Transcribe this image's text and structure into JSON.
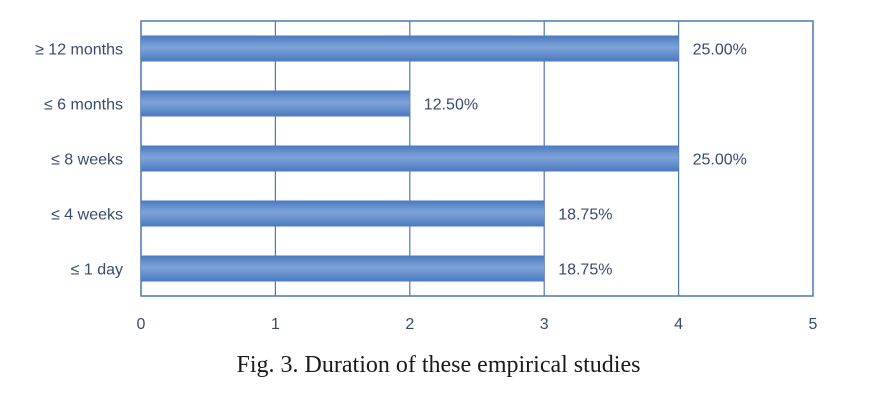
{
  "caption": "Fig. 3. Duration of these empirical studies",
  "colors": {
    "bar": "#4a79bf",
    "bar_light": "#7fa3d8",
    "grid": "#4f77b4",
    "frame": "#4f77b4"
  },
  "chart_data": {
    "type": "bar",
    "orientation": "horizontal",
    "categories": [
      "≥ 12 months",
      "≤ 6 months",
      "≤ 8 weeks",
      "≤ 4 weeks",
      "≤ 1 day"
    ],
    "values": [
      4,
      2,
      4,
      3,
      3
    ],
    "data_labels": [
      "25.00%",
      "12.50%",
      "25.00%",
      "18.75%",
      "18.75%"
    ],
    "xlim": [
      0,
      5
    ],
    "xticks": [
      "0",
      "1",
      "2",
      "3",
      "4",
      "5"
    ],
    "grid": true,
    "legend": "none"
  }
}
